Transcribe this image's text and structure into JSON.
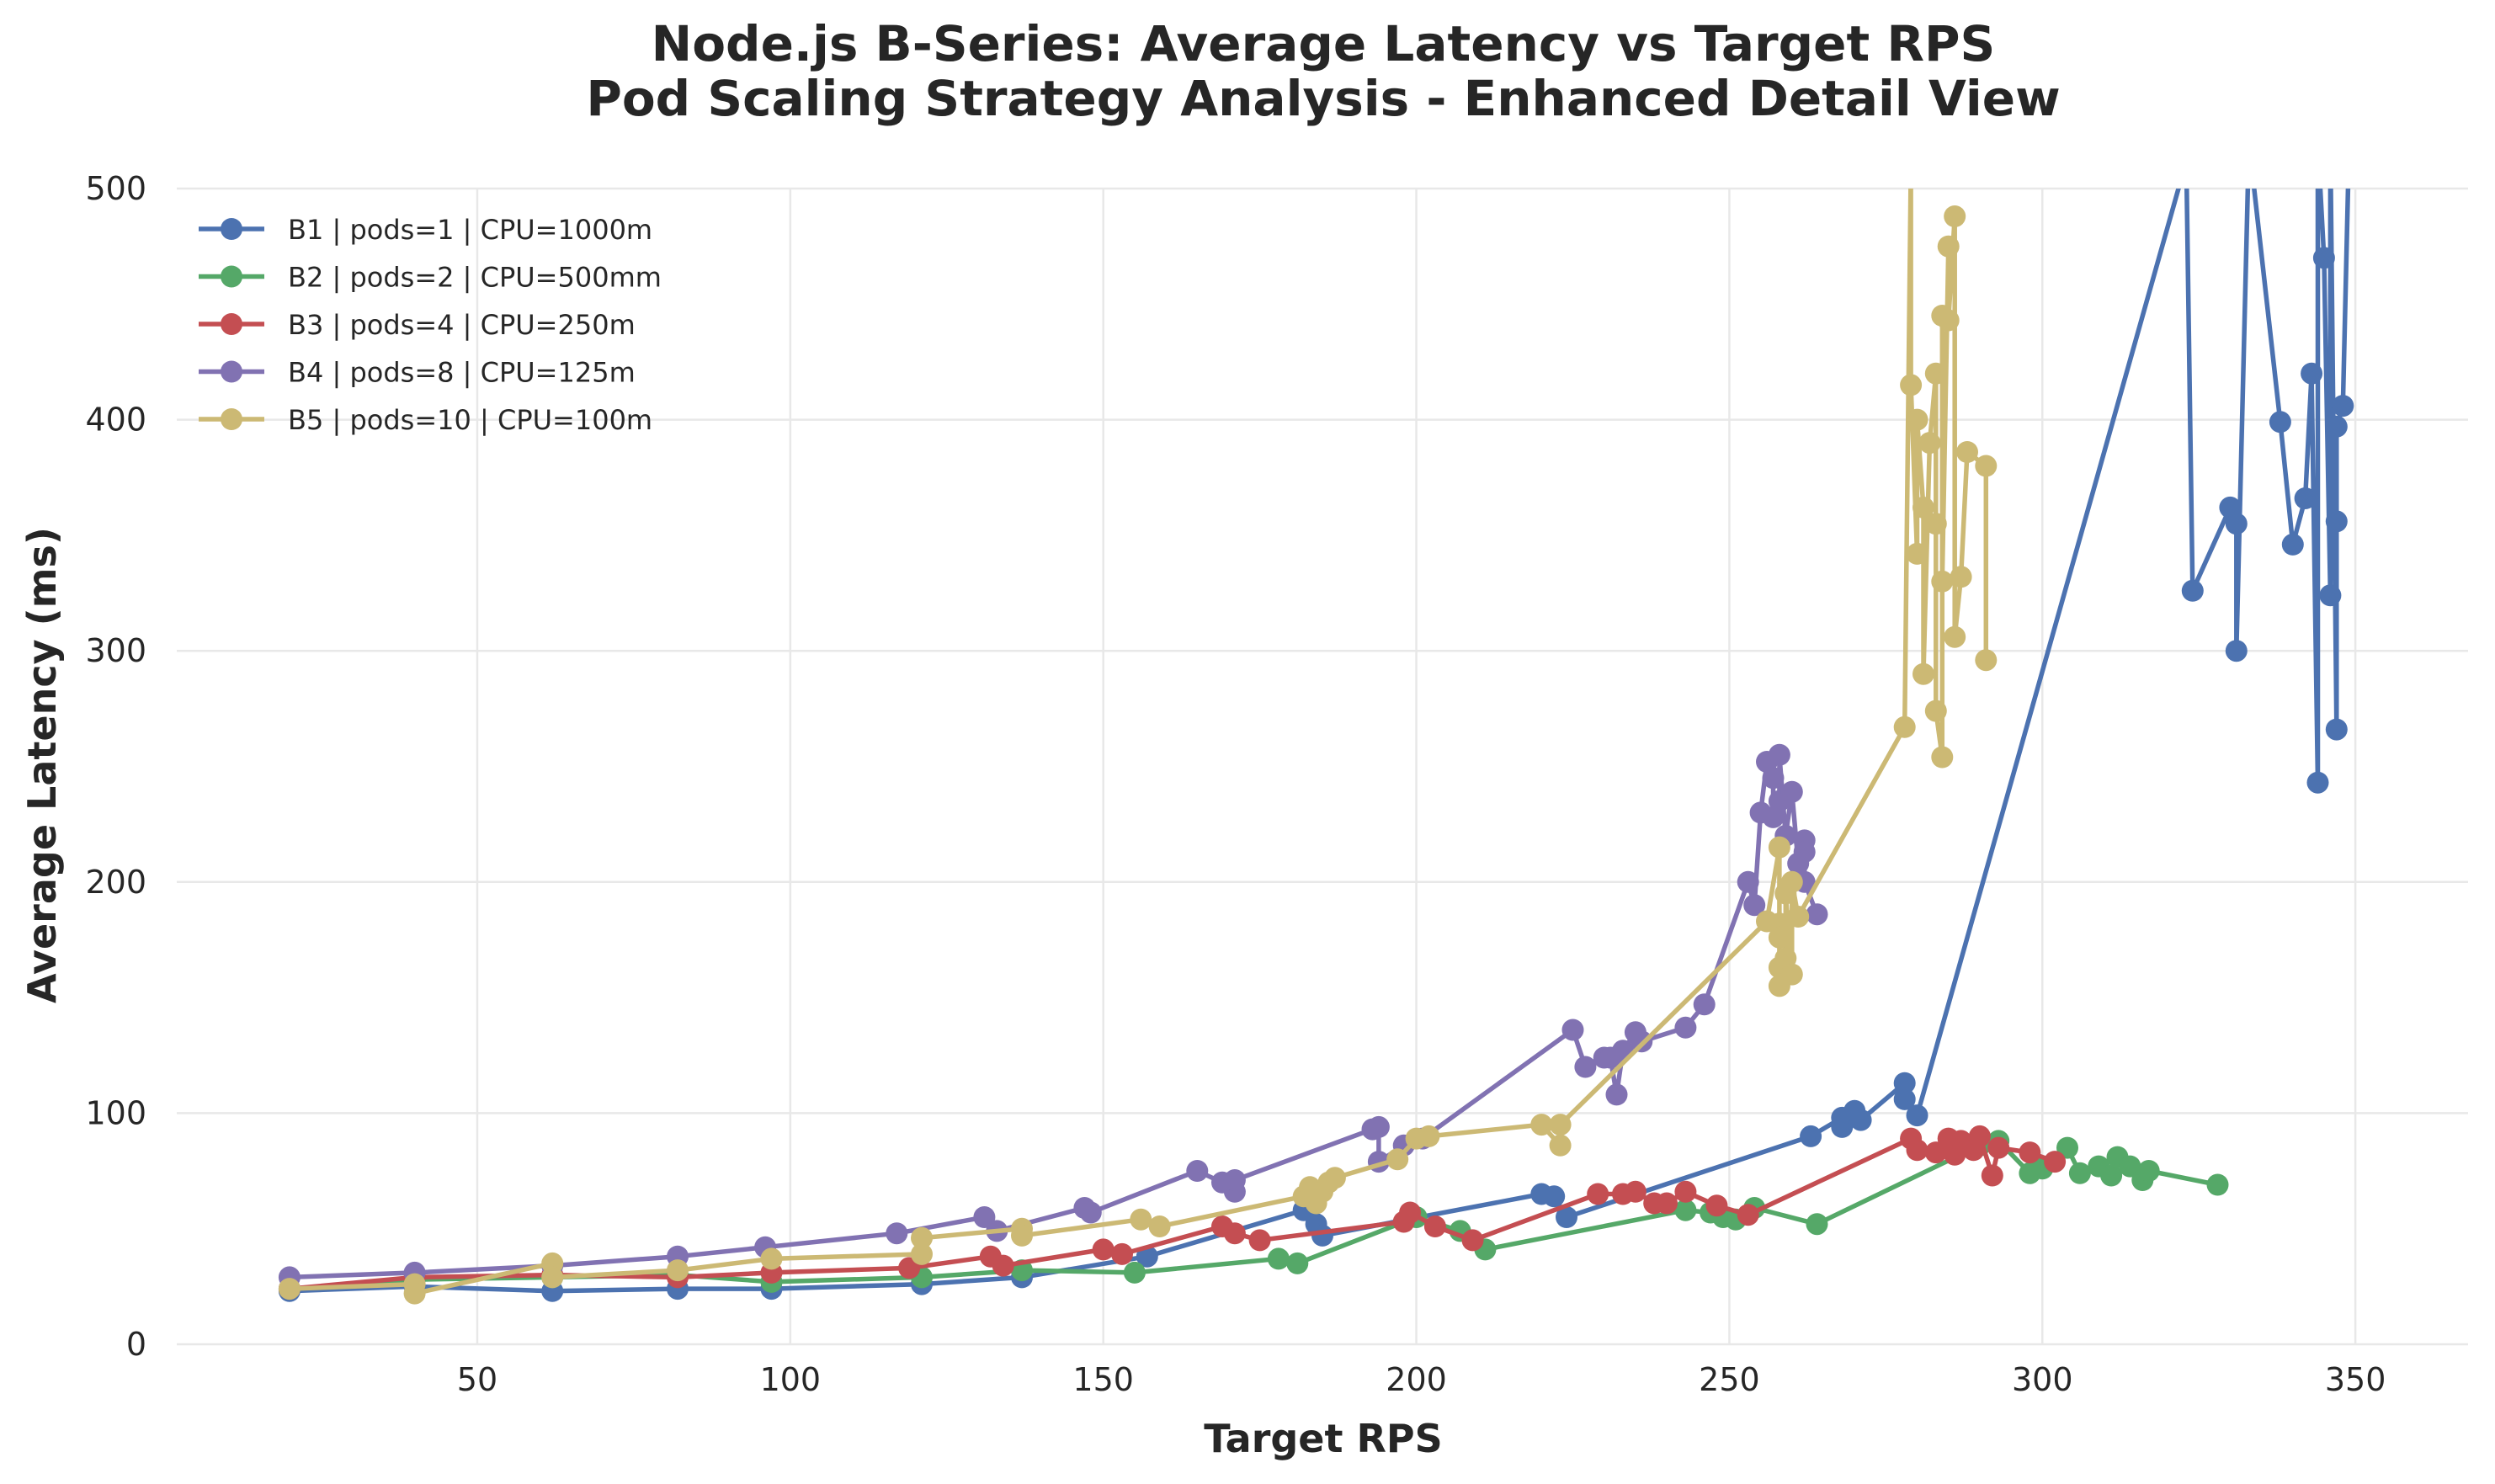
{
  "chart_data": {
    "type": "line",
    "title": [
      "Node.js B-Series: Average Latency vs Target RPS",
      "Pod Scaling Strategy Analysis - Enhanced Detail View"
    ],
    "xlabel": "Target RPS",
    "ylabel": "Average Latency (ms)",
    "xlim": [
      2,
      368
    ],
    "ylim": [
      0,
      500
    ],
    "xticks": [
      "50",
      "100",
      "150",
      "200",
      "250",
      "300",
      "350"
    ],
    "yticks": [
      "0",
      "100",
      "200",
      "300",
      "400",
      "500"
    ],
    "grid": true,
    "legend_position": "top-left",
    "series": [
      {
        "name": "B1 | pods=1 | CPU=1000m",
        "color": "#4c72b0",
        "points": [
          [
            20,
            23
          ],
          [
            40,
            25
          ],
          [
            62,
            23
          ],
          [
            82,
            24
          ],
          [
            97,
            24
          ],
          [
            121,
            26
          ],
          [
            137,
            29
          ],
          [
            157,
            38
          ],
          [
            182,
            58
          ],
          [
            184,
            52
          ],
          [
            185,
            47
          ],
          [
            220,
            65
          ],
          [
            222,
            64
          ],
          [
            224,
            55
          ],
          [
            263,
            90
          ],
          [
            268,
            98
          ],
          [
            268,
            94
          ],
          [
            270,
            101
          ],
          [
            271,
            97
          ],
          [
            278,
            113
          ],
          [
            278,
            106
          ],
          [
            280,
            99
          ],
          [
            323,
            512
          ],
          [
            324,
            326
          ],
          [
            330,
            362
          ],
          [
            331,
            355
          ],
          [
            331,
            300
          ],
          [
            333,
            520
          ],
          [
            338,
            399
          ],
          [
            340,
            346
          ],
          [
            342,
            366
          ],
          [
            343,
            420
          ],
          [
            344,
            243
          ],
          [
            344,
            520
          ],
          [
            345,
            470
          ],
          [
            346,
            324
          ],
          [
            346,
            520
          ],
          [
            347,
            266
          ],
          [
            347,
            356
          ],
          [
            347,
            397
          ],
          [
            348,
            406
          ],
          [
            349,
            520
          ]
        ]
      },
      {
        "name": "B2 | pods=2 | CPU=500mm",
        "color": "#55a868",
        "points": [
          [
            20,
            24
          ],
          [
            40,
            28
          ],
          [
            62,
            29
          ],
          [
            82,
            30
          ],
          [
            97,
            27
          ],
          [
            121,
            29
          ],
          [
            137,
            32
          ],
          [
            155,
            31
          ],
          [
            178,
            37
          ],
          [
            181,
            35
          ],
          [
            200,
            55
          ],
          [
            207,
            49
          ],
          [
            211,
            41
          ],
          [
            243,
            58
          ],
          [
            247,
            57
          ],
          [
            249,
            55
          ],
          [
            251,
            54
          ],
          [
            254,
            59
          ],
          [
            264,
            52
          ],
          [
            290,
            86
          ],
          [
            293,
            88
          ],
          [
            298,
            74
          ],
          [
            300,
            76
          ],
          [
            304,
            85
          ],
          [
            306,
            74
          ],
          [
            309,
            77
          ],
          [
            311,
            73
          ],
          [
            312,
            81
          ],
          [
            314,
            77
          ],
          [
            316,
            71
          ],
          [
            317,
            75
          ],
          [
            328,
            69
          ]
        ]
      },
      {
        "name": "B3 | pods=4 | CPU=250m",
        "color": "#c44e52",
        "points": [
          [
            20,
            24
          ],
          [
            40,
            29
          ],
          [
            62,
            30
          ],
          [
            82,
            29
          ],
          [
            97,
            31
          ],
          [
            119,
            33
          ],
          [
            132,
            38
          ],
          [
            134,
            34
          ],
          [
            150,
            41
          ],
          [
            153,
            39
          ],
          [
            169,
            51
          ],
          [
            171,
            48
          ],
          [
            175,
            45
          ],
          [
            198,
            53
          ],
          [
            199,
            57
          ],
          [
            203,
            51
          ],
          [
            209,
            45
          ],
          [
            229,
            65
          ],
          [
            233,
            65
          ],
          [
            235,
            66
          ],
          [
            238,
            61
          ],
          [
            240,
            61
          ],
          [
            243,
            66
          ],
          [
            248,
            60
          ],
          [
            253,
            56
          ],
          [
            279,
            89
          ],
          [
            280,
            84
          ],
          [
            283,
            83
          ],
          [
            285,
            89
          ],
          [
            286,
            82
          ],
          [
            287,
            88
          ],
          [
            289,
            84
          ],
          [
            290,
            90
          ],
          [
            292,
            73
          ],
          [
            293,
            85
          ],
          [
            298,
            83
          ],
          [
            302,
            79
          ]
        ]
      },
      {
        "name": "B4 | pods=8 | CPU=125m",
        "color": "#8172b2",
        "points": [
          [
            20,
            29
          ],
          [
            40,
            31
          ],
          [
            62,
            34
          ],
          [
            82,
            38
          ],
          [
            96,
            42
          ],
          [
            117,
            48
          ],
          [
            131,
            55
          ],
          [
            133,
            49
          ],
          [
            147,
            59
          ],
          [
            148,
            57
          ],
          [
            165,
            75
          ],
          [
            169,
            70
          ],
          [
            171,
            66
          ],
          [
            171,
            71
          ],
          [
            193,
            93
          ],
          [
            194,
            94
          ],
          [
            194,
            79
          ],
          [
            198,
            86
          ],
          [
            201,
            89
          ],
          [
            225,
            136
          ],
          [
            227,
            120
          ],
          [
            230,
            124
          ],
          [
            231,
            124
          ],
          [
            232,
            108
          ],
          [
            233,
            127
          ],
          [
            235,
            135
          ],
          [
            236,
            131
          ],
          [
            243,
            137
          ],
          [
            246,
            147
          ],
          [
            253,
            200
          ],
          [
            254,
            190
          ],
          [
            255,
            230
          ],
          [
            256,
            252
          ],
          [
            257,
            245
          ],
          [
            257,
            228
          ],
          [
            258,
            235
          ],
          [
            258,
            255
          ],
          [
            259,
            220
          ],
          [
            260,
            239
          ],
          [
            261,
            208
          ],
          [
            262,
            218
          ],
          [
            262,
            213
          ],
          [
            262,
            200
          ],
          [
            264,
            186
          ]
        ]
      },
      {
        "name": "B5 | pods=10 | CPU=100m",
        "color": "#ccb974",
        "points": [
          [
            20,
            24
          ],
          [
            40,
            26
          ],
          [
            40,
            22
          ],
          [
            62,
            35
          ],
          [
            62,
            29
          ],
          [
            82,
            32
          ],
          [
            97,
            37
          ],
          [
            121,
            39
          ],
          [
            121,
            46
          ],
          [
            137,
            50
          ],
          [
            137,
            47
          ],
          [
            156,
            54
          ],
          [
            159,
            51
          ],
          [
            182,
            64
          ],
          [
            183,
            68
          ],
          [
            184,
            61
          ],
          [
            185,
            66
          ],
          [
            186,
            70
          ],
          [
            187,
            72
          ],
          [
            197,
            80
          ],
          [
            200,
            89
          ],
          [
            202,
            90
          ],
          [
            220,
            95
          ],
          [
            223,
            86
          ],
          [
            223,
            95
          ],
          [
            256,
            183
          ],
          [
            258,
            215
          ],
          [
            258,
            182
          ],
          [
            258,
            176
          ],
          [
            258,
            155
          ],
          [
            258,
            163
          ],
          [
            259,
            167
          ],
          [
            259,
            195
          ],
          [
            260,
            160
          ],
          [
            260,
            200
          ],
          [
            261,
            185
          ],
          [
            278,
            267
          ],
          [
            279,
            510
          ],
          [
            279,
            415
          ],
          [
            280,
            342
          ],
          [
            280,
            400
          ],
          [
            281,
            362
          ],
          [
            281,
            290
          ],
          [
            282,
            390
          ],
          [
            283,
            420
          ],
          [
            283,
            355
          ],
          [
            283,
            274
          ],
          [
            284,
            254
          ],
          [
            284,
            445
          ],
          [
            284,
            330
          ],
          [
            285,
            475
          ],
          [
            285,
            443
          ],
          [
            286,
            488
          ],
          [
            286,
            306
          ],
          [
            287,
            332
          ],
          [
            288,
            386
          ],
          [
            291,
            380
          ],
          [
            291,
            296
          ]
        ]
      }
    ]
  }
}
